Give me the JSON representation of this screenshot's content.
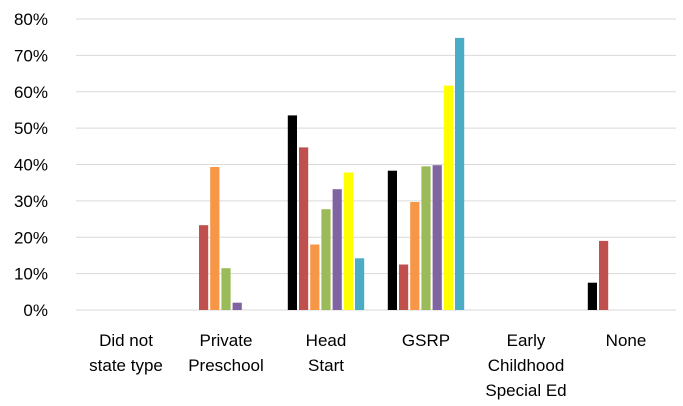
{
  "chart_data": {
    "type": "bar",
    "title": "",
    "xlabel": "",
    "ylabel": "",
    "ylim": [
      0,
      0.8
    ],
    "yticks": [
      "0%",
      "10%",
      "20%",
      "30%",
      "40%",
      "50%",
      "60%",
      "70%",
      "80%"
    ],
    "grid": true,
    "legend": "none",
    "categories": [
      [
        "Did not",
        "state type"
      ],
      [
        "Private",
        "Preschool"
      ],
      [
        "Head",
        "Start"
      ],
      [
        "GSRP"
      ],
      [
        "Early",
        "Childhood",
        "Special Ed"
      ],
      [
        "None"
      ]
    ],
    "series": [
      {
        "color": "#000000",
        "values": [
          0,
          0,
          0.535,
          0.383,
          0,
          0.075
        ]
      },
      {
        "color": "#c0504d",
        "values": [
          0,
          0.233,
          0.447,
          0.125,
          0,
          0.19
        ]
      },
      {
        "color": "#f79646",
        "values": [
          0,
          0.393,
          0.18,
          0.297,
          0,
          0
        ]
      },
      {
        "color": "#9bbb59",
        "values": [
          0,
          0.115,
          0.277,
          0.395,
          0,
          0
        ]
      },
      {
        "color": "#8064a2",
        "values": [
          0,
          0.02,
          0.332,
          0.398,
          0,
          0
        ]
      },
      {
        "color": "#ffff00",
        "values": [
          0,
          0,
          0.378,
          0.617,
          0,
          0
        ]
      },
      {
        "color": "#4bacc6",
        "values": [
          0,
          0,
          0.142,
          0.748,
          0,
          0
        ]
      }
    ]
  }
}
